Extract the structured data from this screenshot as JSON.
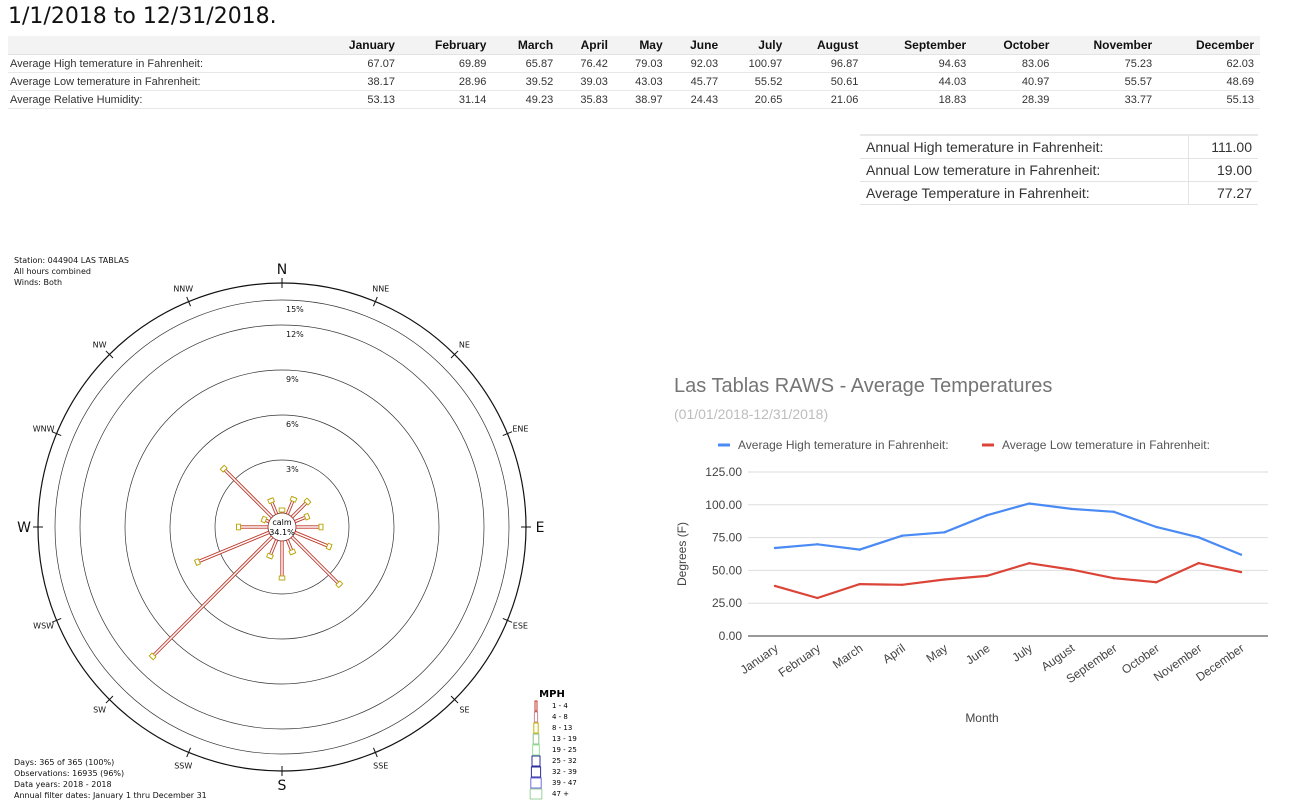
{
  "heading": "1/1/2018 to 12/31/2018.",
  "months": [
    "January",
    "February",
    "March",
    "April",
    "May",
    "June",
    "July",
    "August",
    "September",
    "October",
    "November",
    "December"
  ],
  "monthly_rows": [
    {
      "label": "Average High temerature in Fahrenheit:",
      "values": [
        "67.07",
        "69.89",
        "65.87",
        "76.42",
        "79.03",
        "92.03",
        "100.97",
        "96.87",
        "94.63",
        "83.06",
        "75.23",
        "62.03"
      ]
    },
    {
      "label": "Average Low temerature in Fahrenheit:",
      "values": [
        "38.17",
        "28.96",
        "39.52",
        "39.03",
        "43.03",
        "45.77",
        "55.52",
        "50.61",
        "44.03",
        "40.97",
        "55.57",
        "48.69"
      ]
    },
    {
      "label": "Average Relative Humidity:",
      "values": [
        "53.13",
        "31.14",
        "49.23",
        "35.83",
        "38.97",
        "24.43",
        "20.65",
        "21.06",
        "18.83",
        "28.39",
        "33.77",
        "55.13"
      ]
    }
  ],
  "annual": [
    {
      "label": "Annual High temerature in Fahrenheit:",
      "value": "111.00"
    },
    {
      "label": "Annual Low temerature in Fahrenheit:",
      "value": "19.00"
    },
    {
      "label": "Average Temperature in Fahrenheit:",
      "value": "77.27"
    }
  ],
  "rose": {
    "info_top": [
      "Station: 044904 LAS TABLAS",
      "All hours combined",
      "Winds: Both"
    ],
    "info_bottom": [
      "Days: 365 of 365 (100%)",
      "Observations: 16935 (96%)",
      "Data years: 2018 - 2018",
      "Annual filter dates: January 1 thru December 31"
    ],
    "directions": [
      "N",
      "NNE",
      "NE",
      "ENE",
      "E",
      "ESE",
      "SE",
      "SSE",
      "S",
      "SSW",
      "SW",
      "WSW",
      "W",
      "WNW",
      "NW",
      "NNW"
    ],
    "rings": [
      "3%",
      "6%",
      "9%",
      "12%",
      "15%"
    ],
    "calm_label": "calm",
    "calm_value": "34.1%",
    "legend_title": "MPH",
    "legend_items": [
      "1 - 4",
      "4 - 8",
      "8 - 13",
      "13 - 19",
      "19 - 25",
      "25 - 32",
      "32 - 39",
      "39 - 47",
      "47 +"
    ],
    "legend_colors": [
      "#c0392b",
      "#c98a9a",
      "#c8b400",
      "#8fbf8f",
      "#9be39b",
      "#2b2f9a",
      "#2b2f9a",
      "#6e6ee0",
      "#9bd19b"
    ],
    "spokes_percent": [
      0.3,
      1.2,
      1.6,
      1.0,
      1.8,
      2.6,
      4.6,
      1.0,
      2.6,
      1.3,
      11.4,
      5.3,
      2.1,
      0.5,
      4.7,
      1.1
    ]
  },
  "chart_data": {
    "type": "line",
    "title": "Las Tablas RAWS - Average Temperatures",
    "subtitle": "(01/01/2018-12/31/2018)",
    "xlabel": "Month",
    "ylabel": "Degrees (F)",
    "ylim": [
      0,
      125
    ],
    "yticks": [
      "0.00",
      "25.00",
      "50.00",
      "75.00",
      "100.00",
      "125.00"
    ],
    "categories": [
      "January",
      "February",
      "March",
      "April",
      "May",
      "June",
      "July",
      "August",
      "September",
      "October",
      "November",
      "December"
    ],
    "series": [
      {
        "name": "Average High temerature in Fahrenheit:",
        "color": "#4a8af4",
        "values": [
          67.07,
          69.89,
          65.87,
          76.42,
          79.03,
          92.03,
          100.97,
          96.87,
          94.63,
          83.06,
          75.23,
          62.03
        ]
      },
      {
        "name": "Average Low temerature in Fahrenheit:",
        "color": "#db4437",
        "values": [
          38.17,
          28.96,
          39.52,
          39.03,
          43.03,
          45.77,
          55.52,
          50.61,
          44.03,
          40.97,
          55.57,
          48.69
        ]
      }
    ],
    "legend_position": "top",
    "grid": true
  }
}
